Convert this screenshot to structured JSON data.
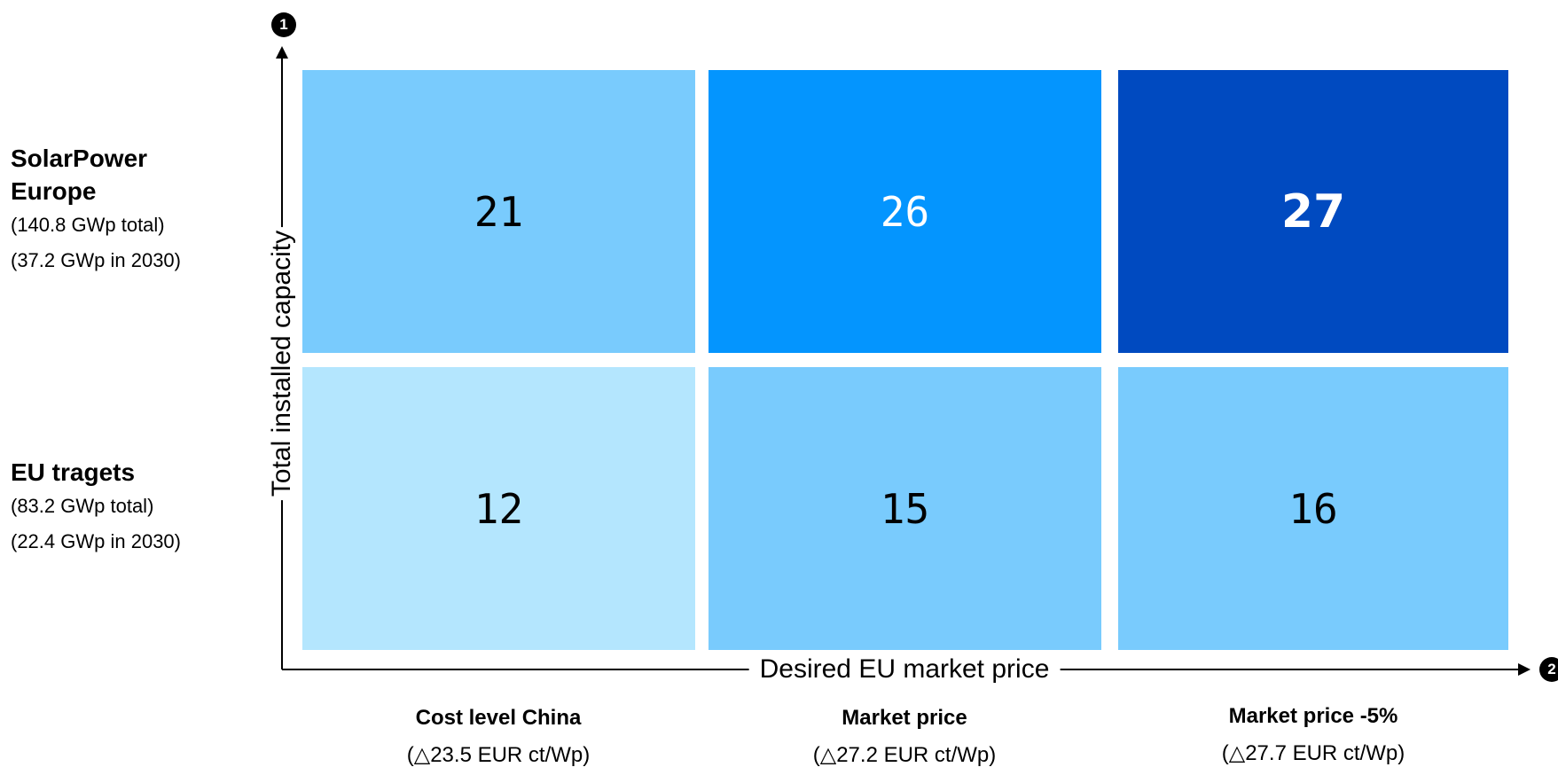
{
  "chart_data": {
    "type": "heatmap",
    "y_axis": {
      "label": "Total installed capacity",
      "badge": "1"
    },
    "x_axis": {
      "label": "Desired EU market price",
      "badge": "2"
    },
    "rows": [
      {
        "name": "SolarPower Europe",
        "lines": [
          "(140.8 GWp total)",
          "(37.2 GWp in 2030)"
        ]
      },
      {
        "name": "EU tragets",
        "lines": [
          "(83.2 GWp total)",
          "(22.4 GWp in 2030)"
        ]
      }
    ],
    "columns": [
      {
        "name": "Cost level China",
        "sub": "(△23.5 EUR ct/Wp)"
      },
      {
        "name": "Market price",
        "sub": "(△27.2 EUR ct/Wp)"
      },
      {
        "name": "Market price -5%",
        "sub": "(△27.7 EUR ct/Wp)"
      }
    ],
    "values": [
      [
        "21",
        "26",
        "27"
      ],
      [
        "12",
        "15",
        "16"
      ]
    ],
    "cell_colors": [
      [
        "#79cbfd",
        "#0495fe",
        "#004ac0"
      ],
      [
        "#b4e6fe",
        "#79cbfd",
        "#79cbfd"
      ]
    ],
    "cell_text_colors": [
      [
        "#000000",
        "#ffffff",
        "#ffffff"
      ],
      [
        "#000000",
        "#000000",
        "#000000"
      ]
    ]
  }
}
